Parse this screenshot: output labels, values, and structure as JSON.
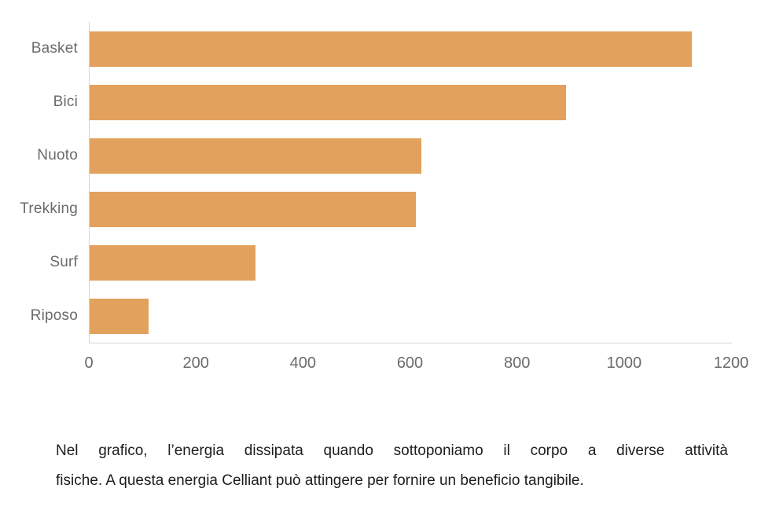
{
  "chart_data": {
    "type": "bar",
    "orientation": "horizontal",
    "title": "",
    "categories": [
      "Basket",
      "Bici",
      "Nuoto",
      "Trekking",
      "Surf",
      "Riposo"
    ],
    "values": [
      1125,
      890,
      620,
      610,
      310,
      110
    ],
    "xlabel": "",
    "ylabel": "",
    "xlim": [
      0,
      1200
    ],
    "x_ticks": [
      "0",
      "200",
      "400",
      "600",
      "800",
      "1000",
      "1200"
    ],
    "grid": false,
    "legend": false,
    "bar_color": "#e2a15c",
    "axis_color": "#d4d4d4",
    "tick_label_color": "#6b6b6b",
    "category_label_color": "#6b6b6b"
  },
  "caption": {
    "line1": "Nel grafico, l’energia dissipata quando sottoponiamo il corpo a diverse attività",
    "line2": "fisiche. A questa energia Celliant può attingere per fornire un beneficio tangibile."
  }
}
